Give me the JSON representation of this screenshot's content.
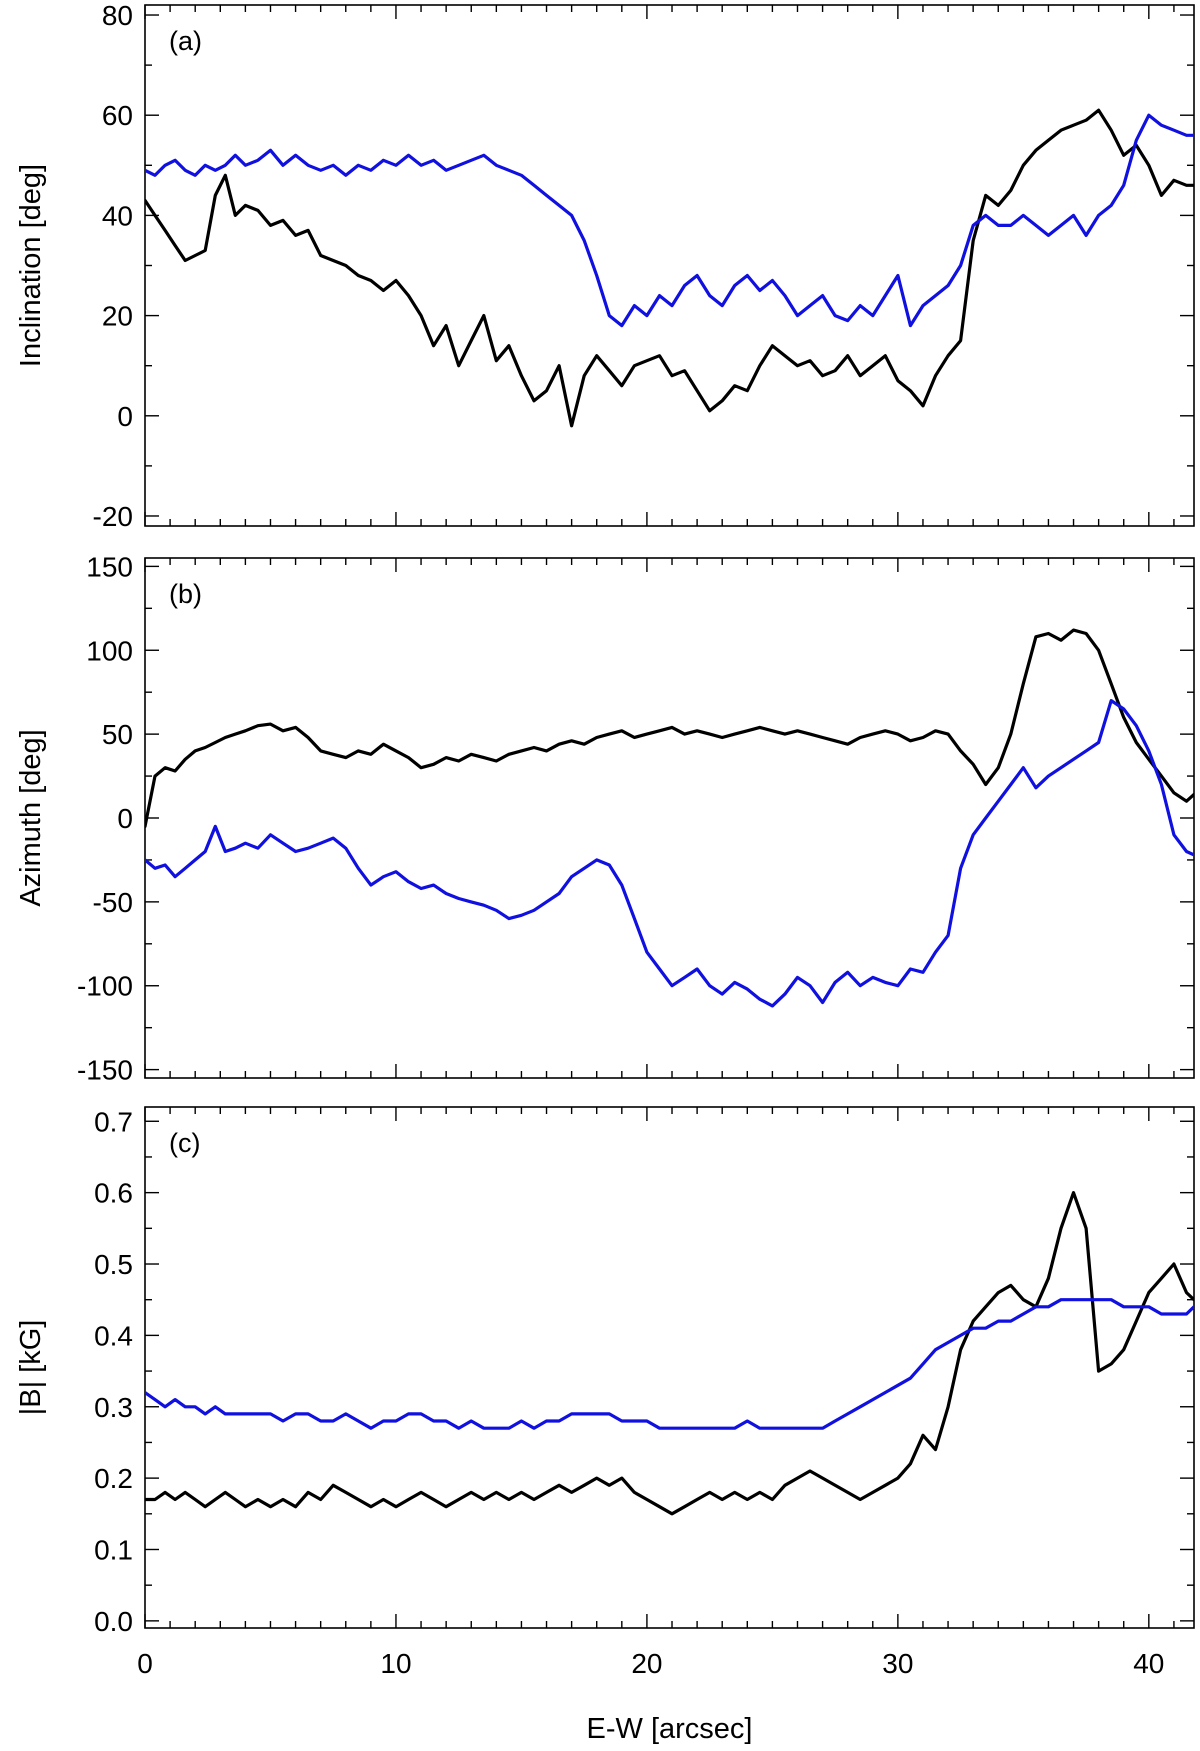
{
  "chart_data": [
    {
      "type": "line",
      "panel_label": "(a)",
      "ylabel": "Inclination [deg]",
      "xlim": [
        0,
        41.8
      ],
      "ylim": [
        -22,
        82
      ],
      "yticks": [
        -20,
        0,
        20,
        40,
        60,
        80
      ],
      "ytick_labels": [
        "-20",
        "0",
        "20",
        "40",
        "60",
        "80"
      ],
      "series": [
        {
          "color": "#000000",
          "x": [
            0,
            0.4,
            0.8,
            1.2,
            1.6,
            2,
            2.4,
            2.8,
            3.2,
            3.6,
            4,
            4.5,
            5,
            5.5,
            6,
            6.5,
            7,
            7.5,
            8,
            8.5,
            9,
            9.5,
            10,
            10.5,
            11,
            11.5,
            12,
            12.5,
            13,
            13.5,
            14,
            14.5,
            15,
            15.5,
            16,
            16.5,
            17,
            17.5,
            18,
            18.5,
            19,
            19.5,
            20,
            20.5,
            21,
            21.5,
            22,
            22.5,
            23,
            23.5,
            24,
            24.5,
            25,
            25.5,
            26,
            26.5,
            27,
            27.5,
            28,
            28.5,
            29,
            29.5,
            30,
            30.5,
            31,
            31.5,
            32,
            32.5,
            33,
            33.5,
            34,
            34.5,
            35,
            35.5,
            36,
            36.5,
            37,
            37.5,
            38,
            38.5,
            39,
            39.5,
            40,
            40.5,
            41,
            41.5,
            41.8
          ],
          "values": [
            43,
            40,
            37,
            34,
            31,
            32,
            33,
            44,
            48,
            40,
            42,
            41,
            38,
            39,
            36,
            37,
            32,
            31,
            30,
            28,
            27,
            25,
            27,
            24,
            20,
            14,
            18,
            10,
            15,
            20,
            11,
            14,
            8,
            3,
            5,
            10,
            -2,
            8,
            12,
            9,
            6,
            10,
            11,
            12,
            8,
            9,
            5,
            1,
            3,
            6,
            5,
            10,
            14,
            12,
            10,
            11,
            8,
            9,
            12,
            8,
            10,
            12,
            7,
            5,
            2,
            8,
            12,
            15,
            35,
            44,
            42,
            45,
            50,
            53,
            55,
            57,
            58,
            59,
            61,
            57,
            52,
            54,
            50,
            44,
            47,
            46,
            46
          ]
        },
        {
          "color": "#1010e0",
          "x": [
            0,
            0.4,
            0.8,
            1.2,
            1.6,
            2,
            2.4,
            2.8,
            3.2,
            3.6,
            4,
            4.5,
            5,
            5.5,
            6,
            6.5,
            7,
            7.5,
            8,
            8.5,
            9,
            9.5,
            10,
            10.5,
            11,
            11.5,
            12,
            12.5,
            13,
            13.5,
            14,
            14.5,
            15,
            15.5,
            16,
            16.5,
            17,
            17.5,
            18,
            18.5,
            19,
            19.5,
            20,
            20.5,
            21,
            21.5,
            22,
            22.5,
            23,
            23.5,
            24,
            24.5,
            25,
            25.5,
            26,
            26.5,
            27,
            27.5,
            28,
            28.5,
            29,
            29.5,
            30,
            30.5,
            31,
            31.5,
            32,
            32.5,
            33,
            33.5,
            34,
            34.5,
            35,
            35.5,
            36,
            36.5,
            37,
            37.5,
            38,
            38.5,
            39,
            39.5,
            40,
            40.5,
            41,
            41.5,
            41.8
          ],
          "values": [
            49,
            48,
            50,
            51,
            49,
            48,
            50,
            49,
            50,
            52,
            50,
            51,
            53,
            50,
            52,
            50,
            49,
            50,
            48,
            50,
            49,
            51,
            50,
            52,
            50,
            51,
            49,
            50,
            51,
            52,
            50,
            49,
            48,
            46,
            44,
            42,
            40,
            35,
            28,
            20,
            18,
            22,
            20,
            24,
            22,
            26,
            28,
            24,
            22,
            26,
            28,
            25,
            27,
            24,
            20,
            22,
            24,
            20,
            19,
            22,
            20,
            24,
            28,
            18,
            22,
            24,
            26,
            30,
            38,
            40,
            38,
            38,
            40,
            38,
            36,
            38,
            40,
            36,
            40,
            42,
            46,
            55,
            60,
            58,
            57,
            56,
            56
          ]
        }
      ]
    },
    {
      "type": "line",
      "panel_label": "(b)",
      "ylabel": "Azimuth [deg]",
      "xlim": [
        0,
        41.8
      ],
      "ylim": [
        -155,
        155
      ],
      "yticks": [
        -150,
        -100,
        -50,
        0,
        50,
        100,
        150
      ],
      "ytick_labels": [
        "-150",
        "-100",
        "-50",
        "0",
        "50",
        "100",
        "150"
      ],
      "series": [
        {
          "color": "#000000",
          "x": [
            0,
            0.4,
            0.8,
            1.2,
            1.6,
            2,
            2.4,
            2.8,
            3.2,
            3.6,
            4,
            4.5,
            5,
            5.5,
            6,
            6.5,
            7,
            7.5,
            8,
            8.5,
            9,
            9.5,
            10,
            10.5,
            11,
            11.5,
            12,
            12.5,
            13,
            13.5,
            14,
            14.5,
            15,
            15.5,
            16,
            16.5,
            17,
            17.5,
            18,
            18.5,
            19,
            19.5,
            20,
            20.5,
            21,
            21.5,
            22,
            22.5,
            23,
            23.5,
            24,
            24.5,
            25,
            25.5,
            26,
            26.5,
            27,
            27.5,
            28,
            28.5,
            29,
            29.5,
            30,
            30.5,
            31,
            31.5,
            32,
            32.5,
            33,
            33.5,
            34,
            34.5,
            35,
            35.5,
            36,
            36.5,
            37,
            37.5,
            38,
            38.5,
            39,
            39.5,
            40,
            40.5,
            41,
            41.5,
            41.8
          ],
          "values": [
            -5,
            25,
            30,
            28,
            35,
            40,
            42,
            45,
            48,
            50,
            52,
            55,
            56,
            52,
            54,
            48,
            40,
            38,
            36,
            40,
            38,
            44,
            40,
            36,
            30,
            32,
            36,
            34,
            38,
            36,
            34,
            38,
            40,
            42,
            40,
            44,
            46,
            44,
            48,
            50,
            52,
            48,
            50,
            52,
            54,
            50,
            52,
            50,
            48,
            50,
            52,
            54,
            52,
            50,
            52,
            50,
            48,
            46,
            44,
            48,
            50,
            52,
            50,
            46,
            48,
            52,
            50,
            40,
            32,
            20,
            30,
            50,
            80,
            108,
            110,
            106,
            112,
            110,
            100,
            80,
            60,
            45,
            35,
            25,
            15,
            10,
            14
          ]
        },
        {
          "color": "#1010e0",
          "x": [
            0,
            0.4,
            0.8,
            1.2,
            1.6,
            2,
            2.4,
            2.8,
            3.2,
            3.6,
            4,
            4.5,
            5,
            5.5,
            6,
            6.5,
            7,
            7.5,
            8,
            8.5,
            9,
            9.5,
            10,
            10.5,
            11,
            11.5,
            12,
            12.5,
            13,
            13.5,
            14,
            14.5,
            15,
            15.5,
            16,
            16.5,
            17,
            17.5,
            18,
            18.5,
            19,
            19.5,
            20,
            20.5,
            21,
            21.5,
            22,
            22.5,
            23,
            23.5,
            24,
            24.5,
            25,
            25.5,
            26,
            26.5,
            27,
            27.5,
            28,
            28.5,
            29,
            29.5,
            30,
            30.5,
            31,
            31.5,
            32,
            32.5,
            33,
            33.5,
            34,
            34.5,
            35,
            35.5,
            36,
            36.5,
            37,
            37.5,
            38,
            38.5,
            39,
            39.5,
            40,
            40.5,
            41,
            41.5,
            41.8
          ],
          "values": [
            -25,
            -30,
            -28,
            -35,
            -30,
            -25,
            -20,
            -5,
            -20,
            -18,
            -15,
            -18,
            -10,
            -15,
            -20,
            -18,
            -15,
            -12,
            -18,
            -30,
            -40,
            -35,
            -32,
            -38,
            -42,
            -40,
            -45,
            -48,
            -50,
            -52,
            -55,
            -60,
            -58,
            -55,
            -50,
            -45,
            -35,
            -30,
            -25,
            -28,
            -40,
            -60,
            -80,
            -90,
            -100,
            -95,
            -90,
            -100,
            -105,
            -98,
            -102,
            -108,
            -112,
            -105,
            -95,
            -100,
            -110,
            -98,
            -92,
            -100,
            -95,
            -98,
            -100,
            -90,
            -92,
            -80,
            -70,
            -30,
            -10,
            0,
            10,
            20,
            30,
            18,
            25,
            30,
            35,
            40,
            45,
            70,
            65,
            55,
            40,
            20,
            -10,
            -20,
            -22
          ]
        }
      ]
    },
    {
      "type": "line",
      "panel_label": "(c)",
      "ylabel": "|B|  [kG]",
      "xlabel": "E-W [arcsec]",
      "xlim": [
        0,
        41.8
      ],
      "ylim": [
        -0.01,
        0.72
      ],
      "xticks": [
        0,
        10,
        20,
        30,
        40
      ],
      "xtick_labels": [
        "0",
        "10",
        "20",
        "30",
        "40"
      ],
      "yticks": [
        0.0,
        0.1,
        0.2,
        0.3,
        0.4,
        0.5,
        0.6,
        0.7
      ],
      "ytick_labels": [
        "0.0",
        "0.1",
        "0.2",
        "0.3",
        "0.4",
        "0.5",
        "0.6",
        "0.7"
      ],
      "series": [
        {
          "color": "#000000",
          "x": [
            0,
            0.4,
            0.8,
            1.2,
            1.6,
            2,
            2.4,
            2.8,
            3.2,
            3.6,
            4,
            4.5,
            5,
            5.5,
            6,
            6.5,
            7,
            7.5,
            8,
            8.5,
            9,
            9.5,
            10,
            10.5,
            11,
            11.5,
            12,
            12.5,
            13,
            13.5,
            14,
            14.5,
            15,
            15.5,
            16,
            16.5,
            17,
            17.5,
            18,
            18.5,
            19,
            19.5,
            20,
            20.5,
            21,
            21.5,
            22,
            22.5,
            23,
            23.5,
            24,
            24.5,
            25,
            25.5,
            26,
            26.5,
            27,
            27.5,
            28,
            28.5,
            29,
            29.5,
            30,
            30.5,
            31,
            31.5,
            32,
            32.5,
            33,
            33.5,
            34,
            34.5,
            35,
            35.5,
            36,
            36.5,
            37,
            37.5,
            38,
            38.5,
            39,
            39.5,
            40,
            40.5,
            41,
            41.5,
            41.8
          ],
          "values": [
            0.17,
            0.17,
            0.18,
            0.17,
            0.18,
            0.17,
            0.16,
            0.17,
            0.18,
            0.17,
            0.16,
            0.17,
            0.16,
            0.17,
            0.16,
            0.18,
            0.17,
            0.19,
            0.18,
            0.17,
            0.16,
            0.17,
            0.16,
            0.17,
            0.18,
            0.17,
            0.16,
            0.17,
            0.18,
            0.17,
            0.18,
            0.17,
            0.18,
            0.17,
            0.18,
            0.19,
            0.18,
            0.19,
            0.2,
            0.19,
            0.2,
            0.18,
            0.17,
            0.16,
            0.15,
            0.16,
            0.17,
            0.18,
            0.17,
            0.18,
            0.17,
            0.18,
            0.17,
            0.19,
            0.2,
            0.21,
            0.2,
            0.19,
            0.18,
            0.17,
            0.18,
            0.19,
            0.2,
            0.22,
            0.26,
            0.24,
            0.3,
            0.38,
            0.42,
            0.44,
            0.46,
            0.47,
            0.45,
            0.44,
            0.48,
            0.55,
            0.6,
            0.55,
            0.35,
            0.36,
            0.38,
            0.42,
            0.46,
            0.48,
            0.5,
            0.46,
            0.45
          ]
        },
        {
          "color": "#1010e0",
          "x": [
            0,
            0.4,
            0.8,
            1.2,
            1.6,
            2,
            2.4,
            2.8,
            3.2,
            3.6,
            4,
            4.5,
            5,
            5.5,
            6,
            6.5,
            7,
            7.5,
            8,
            8.5,
            9,
            9.5,
            10,
            10.5,
            11,
            11.5,
            12,
            12.5,
            13,
            13.5,
            14,
            14.5,
            15,
            15.5,
            16,
            16.5,
            17,
            17.5,
            18,
            18.5,
            19,
            19.5,
            20,
            20.5,
            21,
            21.5,
            22,
            22.5,
            23,
            23.5,
            24,
            24.5,
            25,
            25.5,
            26,
            26.5,
            27,
            27.5,
            28,
            28.5,
            29,
            29.5,
            30,
            30.5,
            31,
            31.5,
            32,
            32.5,
            33,
            33.5,
            34,
            34.5,
            35,
            35.5,
            36,
            36.5,
            37,
            37.5,
            38,
            38.5,
            39,
            39.5,
            40,
            40.5,
            41,
            41.5,
            41.8
          ],
          "values": [
            0.32,
            0.31,
            0.3,
            0.31,
            0.3,
            0.3,
            0.29,
            0.3,
            0.29,
            0.29,
            0.29,
            0.29,
            0.29,
            0.28,
            0.29,
            0.29,
            0.28,
            0.28,
            0.29,
            0.28,
            0.27,
            0.28,
            0.28,
            0.29,
            0.29,
            0.28,
            0.28,
            0.27,
            0.28,
            0.27,
            0.27,
            0.27,
            0.28,
            0.27,
            0.28,
            0.28,
            0.29,
            0.29,
            0.29,
            0.29,
            0.28,
            0.28,
            0.28,
            0.27,
            0.27,
            0.27,
            0.27,
            0.27,
            0.27,
            0.27,
            0.28,
            0.27,
            0.27,
            0.27,
            0.27,
            0.27,
            0.27,
            0.28,
            0.29,
            0.3,
            0.31,
            0.32,
            0.33,
            0.34,
            0.36,
            0.38,
            0.39,
            0.4,
            0.41,
            0.41,
            0.42,
            0.42,
            0.43,
            0.44,
            0.44,
            0.45,
            0.45,
            0.45,
            0.45,
            0.45,
            0.44,
            0.44,
            0.44,
            0.43,
            0.43,
            0.43,
            0.44
          ]
        }
      ]
    }
  ]
}
